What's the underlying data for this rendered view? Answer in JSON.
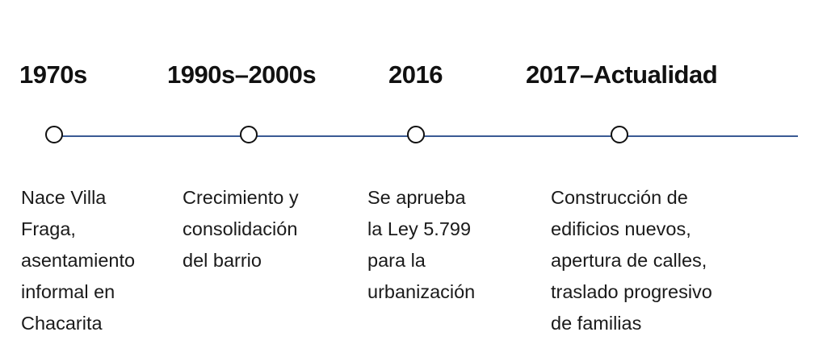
{
  "events": [
    {
      "year": "1970s",
      "lines": [
        "Nace Villa",
        "Fraga,",
        "asentamiento",
        "informal en",
        "Chacarita"
      ]
    },
    {
      "year": "1990s–2000s",
      "lines": [
        "Crecimiento y",
        "consolidación",
        "del barrio"
      ]
    },
    {
      "year": "2016",
      "lines": [
        "Se aprueba",
        "la Ley 5.799",
        "para la",
        "urbanización"
      ]
    },
    {
      "year": "2017–Actualidad",
      "lines": [
        "Construcción de",
        "edificios nuevos,",
        "apertura de calles,",
        "traslado progresivo",
        "de familias"
      ]
    }
  ],
  "colors": {
    "line": "#3a5a94",
    "marker": "#111111",
    "text": "#111111"
  }
}
